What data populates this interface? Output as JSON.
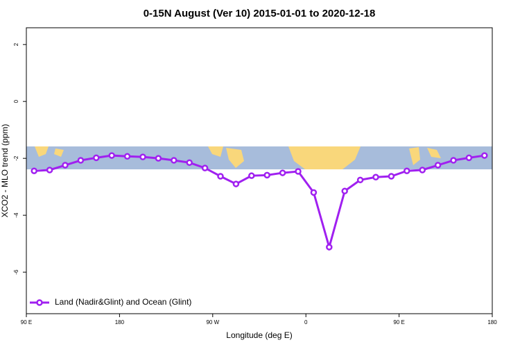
{
  "chart_data": {
    "type": "line",
    "title": "0-15N August (Ver 10)   2015-01-01 to 2020-12-18",
    "x_label": "Longitude (deg E)",
    "y_label": "XCO2 - MLO trend (ppm)",
    "x": [
      97.5,
      112.5,
      127.5,
      142.5,
      157.5,
      172.5,
      187.5,
      202.5,
      217.5,
      232.5,
      247.5,
      262.5,
      277.5,
      292.5,
      307.5,
      322.5,
      337.5,
      352.5,
      367.5,
      382.5,
      397.5,
      412.5,
      427.5,
      442.5,
      457.5,
      472.5,
      487.5,
      502.5,
      517.5,
      532.5
    ],
    "series": [
      {
        "name": "Land (Nadir&Glint) and Ocean (Glint)",
        "color": "#a020f0",
        "values": [
          -2.44,
          -2.41,
          -2.24,
          -2.07,
          -1.98,
          -1.9,
          -1.93,
          -1.95,
          -2.0,
          -2.07,
          -2.15,
          -2.34,
          -2.63,
          -2.9,
          -2.61,
          -2.59,
          -2.51,
          -2.46,
          -3.2,
          -5.12,
          -3.15,
          -2.76,
          -2.66,
          -2.63,
          -2.44,
          -2.41,
          -2.24,
          -2.07,
          -1.98,
          -1.9
        ]
      }
    ],
    "xlim": [
      90,
      540
    ],
    "xticks": [
      {
        "value": 90,
        "label": "90 E"
      },
      180,
      {
        "value": 270,
        "label": "90 W"
      },
      {
        "value": 360,
        "label": "0"
      },
      {
        "value": 450,
        "label": "90 E"
      },
      {
        "value": 540,
        "label": "180"
      }
    ],
    "ylim": [
      -7.46,
      2.59
    ],
    "yticks": [
      2,
      0,
      -2,
      -4,
      -6
    ],
    "legend": "bottom-left"
  }
}
